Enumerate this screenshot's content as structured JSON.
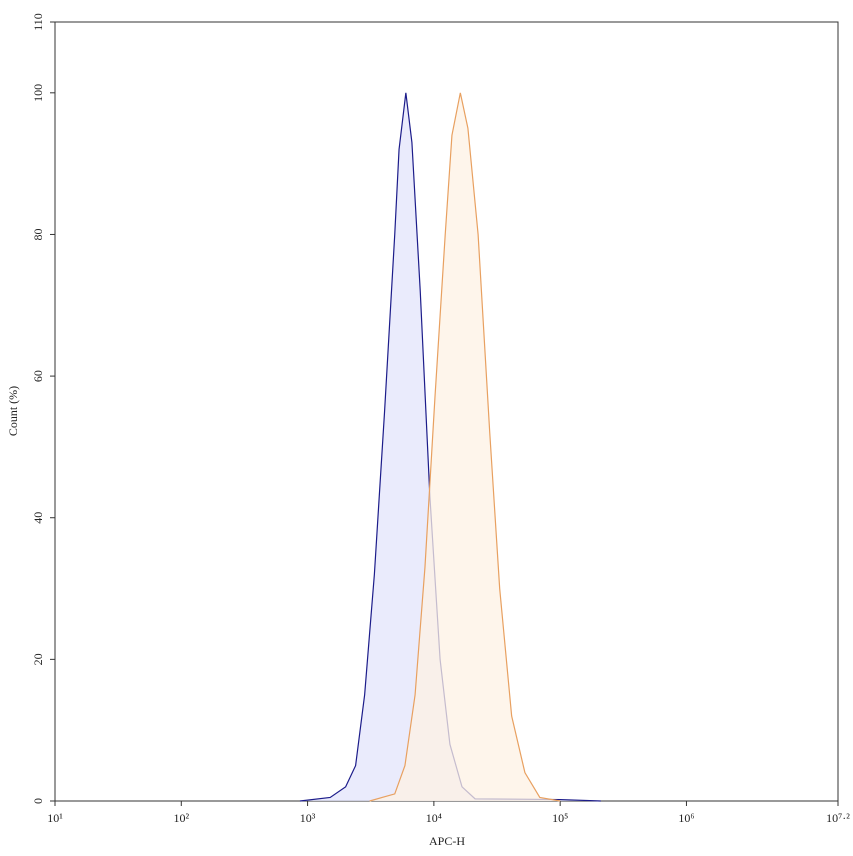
{
  "chart_data": {
    "type": "area",
    "x_label": "APC-H",
    "y_label": "Count (%)",
    "log_x": true,
    "xlim": [
      10,
      15848931.92
    ],
    "xticks": [
      {
        "value": 10,
        "label": "10¹"
      },
      {
        "value": 100,
        "label": "10²"
      },
      {
        "value": 1000,
        "label": "10³"
      },
      {
        "value": 10000,
        "label": "10⁴"
      },
      {
        "value": 100000,
        "label": "10⁵"
      },
      {
        "value": 1000000,
        "label": "10⁶"
      },
      {
        "value": 15848931.92,
        "label": "10⁷·²"
      }
    ],
    "ylim": [
      0,
      110
    ],
    "yticks": [
      0,
      20,
      40,
      60,
      80,
      100,
      110
    ],
    "series": [
      {
        "color": "#1c1c8a",
        "fill": "#e3e4fb",
        "x": [
          870,
          1510,
          2000,
          2400,
          2830,
          3380,
          4070,
          4900,
          5300,
          6000,
          6700,
          7800,
          9300,
          11200,
          13400,
          16700,
          21200,
          100000,
          210000
        ],
        "values": [
          0,
          0.5,
          2,
          5,
          15,
          32,
          55,
          80,
          92,
          100,
          93,
          72,
          43,
          20,
          8,
          2,
          0.3,
          0.2,
          0
        ]
      },
      {
        "color": "#e8a060",
        "fill": "#fdf1e4",
        "x": [
          3100,
          4900,
          5900,
          7100,
          8500,
          10200,
          12300,
          13900,
          16200,
          18600,
          22400,
          27700,
          33200,
          41300,
          52600,
          69000,
          100000
        ],
        "values": [
          0,
          1,
          5,
          15,
          33,
          57,
          80,
          94,
          100,
          95,
          80,
          52,
          30,
          12,
          4,
          0.5,
          0
        ]
      }
    ]
  }
}
